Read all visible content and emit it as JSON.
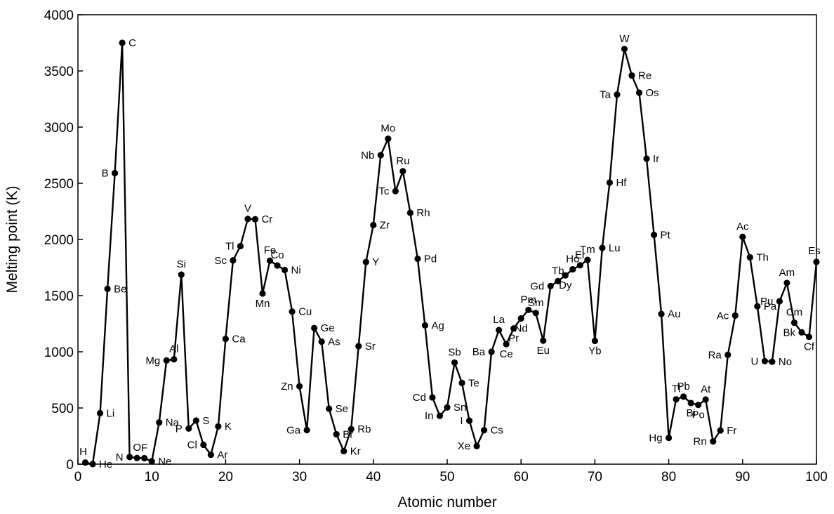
{
  "chart_data": {
    "type": "line",
    "title": "",
    "xlabel": "Atomic number",
    "ylabel": "Melting point (K)",
    "xlim": [
      0,
      100
    ],
    "ylim": [
      0,
      4000
    ],
    "xticks": [
      0,
      10,
      20,
      30,
      40,
      50,
      60,
      70,
      80,
      90,
      100
    ],
    "yticks": [
      0,
      500,
      1000,
      1500,
      2000,
      2500,
      3000,
      3500,
      4000
    ],
    "grid": false,
    "legend": "none",
    "line_color": "#000000",
    "marker_color": "#000000",
    "points": [
      {
        "x": 1,
        "y": 14,
        "label": "H",
        "lp": "tl"
      },
      {
        "x": 2,
        "y": 1,
        "label": "He",
        "lp": "r"
      },
      {
        "x": 3,
        "y": 454,
        "label": "Li",
        "lp": "r"
      },
      {
        "x": 4,
        "y": 1560,
        "label": "Be",
        "lp": "r"
      },
      {
        "x": 5,
        "y": 2590,
        "label": "B",
        "lp": "l"
      },
      {
        "x": 6,
        "y": 3750,
        "label": "C",
        "lp": "r"
      },
      {
        "x": 7,
        "y": 63,
        "label": "N",
        "lp": "l"
      },
      {
        "x": 8,
        "y": 55,
        "label": "O",
        "lp": "t"
      },
      {
        "x": 9,
        "y": 53,
        "label": "F",
        "lp": "t"
      },
      {
        "x": 10,
        "y": 25,
        "label": "Ne",
        "lp": "r"
      },
      {
        "x": 11,
        "y": 371,
        "label": "Na",
        "lp": "r"
      },
      {
        "x": 12,
        "y": 923,
        "label": "Mg",
        "lp": "l"
      },
      {
        "x": 13,
        "y": 933,
        "label": "Al",
        "lp": "t"
      },
      {
        "x": 14,
        "y": 1687,
        "label": "Si",
        "lp": "t"
      },
      {
        "x": 15,
        "y": 317,
        "label": "P",
        "lp": "l"
      },
      {
        "x": 16,
        "y": 388,
        "label": "S",
        "lp": "r"
      },
      {
        "x": 17,
        "y": 172,
        "label": "Cl",
        "lp": "l"
      },
      {
        "x": 18,
        "y": 84,
        "label": "Ar",
        "lp": "r"
      },
      {
        "x": 19,
        "y": 336,
        "label": "K",
        "lp": "r"
      },
      {
        "x": 20,
        "y": 1115,
        "label": "Ca",
        "lp": "r"
      },
      {
        "x": 21,
        "y": 1814,
        "label": "Sc",
        "lp": "l"
      },
      {
        "x": 22,
        "y": 1941,
        "label": "Tl",
        "lp": "l"
      },
      {
        "x": 23,
        "y": 2183,
        "label": "V",
        "lp": "t"
      },
      {
        "x": 24,
        "y": 2180,
        "label": "Cr",
        "lp": "r"
      },
      {
        "x": 25,
        "y": 1519,
        "label": "Mn",
        "lp": "b"
      },
      {
        "x": 26,
        "y": 1811,
        "label": "Fe",
        "lp": "t"
      },
      {
        "x": 27,
        "y": 1768,
        "label": "Co",
        "lp": "t"
      },
      {
        "x": 28,
        "y": 1728,
        "label": "Ni",
        "lp": "r"
      },
      {
        "x": 29,
        "y": 1358,
        "label": "Cu",
        "lp": "r"
      },
      {
        "x": 30,
        "y": 693,
        "label": "Zn",
        "lp": "l"
      },
      {
        "x": 31,
        "y": 303,
        "label": "Ga",
        "lp": "l"
      },
      {
        "x": 32,
        "y": 1211,
        "label": "Ge",
        "lp": "r"
      },
      {
        "x": 33,
        "y": 1090,
        "label": "As",
        "lp": "r"
      },
      {
        "x": 34,
        "y": 494,
        "label": "Se",
        "lp": "r"
      },
      {
        "x": 35,
        "y": 266,
        "label": "Br",
        "lp": "r"
      },
      {
        "x": 36,
        "y": 116,
        "label": "Kr",
        "lp": "r"
      },
      {
        "x": 37,
        "y": 312,
        "label": "Rb",
        "lp": "r"
      },
      {
        "x": 38,
        "y": 1050,
        "label": "Sr",
        "lp": "r"
      },
      {
        "x": 39,
        "y": 1799,
        "label": "Y",
        "lp": "r"
      },
      {
        "x": 40,
        "y": 2128,
        "label": "Zr",
        "lp": "r"
      },
      {
        "x": 41,
        "y": 2750,
        "label": "Nb",
        "lp": "l"
      },
      {
        "x": 42,
        "y": 2896,
        "label": "Mo",
        "lp": "t"
      },
      {
        "x": 43,
        "y": 2430,
        "label": "Tc",
        "lp": "l"
      },
      {
        "x": 44,
        "y": 2607,
        "label": "Ru",
        "lp": "t"
      },
      {
        "x": 45,
        "y": 2237,
        "label": "Rh",
        "lp": "r"
      },
      {
        "x": 46,
        "y": 1828,
        "label": "Pd",
        "lp": "r"
      },
      {
        "x": 47,
        "y": 1235,
        "label": "Ag",
        "lp": "r"
      },
      {
        "x": 48,
        "y": 594,
        "label": "Cd",
        "lp": "l"
      },
      {
        "x": 49,
        "y": 430,
        "label": "In",
        "lp": "l"
      },
      {
        "x": 50,
        "y": 505,
        "label": "Sn",
        "lp": "r"
      },
      {
        "x": 51,
        "y": 904,
        "label": "Sb",
        "lp": "t"
      },
      {
        "x": 52,
        "y": 723,
        "label": "Te",
        "lp": "r"
      },
      {
        "x": 53,
        "y": 387,
        "label": "I",
        "lp": "l"
      },
      {
        "x": 54,
        "y": 161,
        "label": "Xe",
        "lp": "l"
      },
      {
        "x": 55,
        "y": 302,
        "label": "Cs",
        "lp": "r"
      },
      {
        "x": 56,
        "y": 1000,
        "label": "Ba",
        "lp": "l"
      },
      {
        "x": 57,
        "y": 1193,
        "label": "La",
        "lp": "t"
      },
      {
        "x": 58,
        "y": 1068,
        "label": "Ce",
        "lp": "b"
      },
      {
        "x": 59,
        "y": 1208,
        "label": "Pr",
        "lp": "b"
      },
      {
        "x": 60,
        "y": 1297,
        "label": "Nd",
        "lp": "b"
      },
      {
        "x": 61,
        "y": 1373,
        "label": "Pm",
        "lp": "t"
      },
      {
        "x": 62,
        "y": 1345,
        "label": "Sm",
        "lp": "t"
      },
      {
        "x": 63,
        "y": 1099,
        "label": "Eu",
        "lp": "b"
      },
      {
        "x": 64,
        "y": 1585,
        "label": "Gd",
        "lp": "l"
      },
      {
        "x": 65,
        "y": 1629,
        "label": "Tb",
        "lp": "t"
      },
      {
        "x": 66,
        "y": 1680,
        "label": "Dy",
        "lp": "b"
      },
      {
        "x": 67,
        "y": 1734,
        "label": "Ho",
        "lp": "t"
      },
      {
        "x": 68,
        "y": 1770,
        "label": "Er",
        "lp": "t"
      },
      {
        "x": 69,
        "y": 1818,
        "label": "Tm",
        "lp": "t"
      },
      {
        "x": 70,
        "y": 1097,
        "label": "Yb",
        "lp": "b"
      },
      {
        "x": 71,
        "y": 1925,
        "label": "Lu",
        "lp": "r"
      },
      {
        "x": 72,
        "y": 2506,
        "label": "Hf",
        "lp": "r"
      },
      {
        "x": 73,
        "y": 3290,
        "label": "Ta",
        "lp": "l"
      },
      {
        "x": 74,
        "y": 3695,
        "label": "W",
        "lp": "t"
      },
      {
        "x": 75,
        "y": 3459,
        "label": "Re",
        "lp": "r"
      },
      {
        "x": 76,
        "y": 3306,
        "label": "Os",
        "lp": "r"
      },
      {
        "x": 77,
        "y": 2719,
        "label": "Ir",
        "lp": "r"
      },
      {
        "x": 78,
        "y": 2041,
        "label": "Pt",
        "lp": "r"
      },
      {
        "x": 79,
        "y": 1337,
        "label": "Au",
        "lp": "r"
      },
      {
        "x": 80,
        "y": 234,
        "label": "Hg",
        "lp": "l"
      },
      {
        "x": 81,
        "y": 577,
        "label": "Tl",
        "lp": "t"
      },
      {
        "x": 82,
        "y": 601,
        "label": "Pb",
        "lp": "t"
      },
      {
        "x": 83,
        "y": 544,
        "label": "Bi",
        "lp": "b"
      },
      {
        "x": 84,
        "y": 527,
        "label": "Po",
        "lp": "b"
      },
      {
        "x": 85,
        "y": 575,
        "label": "At",
        "lp": "t"
      },
      {
        "x": 86,
        "y": 202,
        "label": "Rn",
        "lp": "l"
      },
      {
        "x": 87,
        "y": 300,
        "label": "Fr",
        "lp": "r"
      },
      {
        "x": 88,
        "y": 973,
        "label": "Ra",
        "lp": "l"
      },
      {
        "x": 89,
        "y": 1323,
        "label": "Ac",
        "lp": "l"
      },
      {
        "x": 90,
        "y": 2023,
        "label": "Ac",
        "lp": "t"
      },
      {
        "x": 91,
        "y": 1841,
        "label": "Th",
        "lp": "r"
      },
      {
        "x": 92,
        "y": 1405,
        "label": "Pa",
        "lp": "r"
      },
      {
        "x": 93,
        "y": 917,
        "label": "U",
        "lp": "l"
      },
      {
        "x": 94,
        "y": 912,
        "label": "No",
        "lp": "r"
      },
      {
        "x": 95,
        "y": 1449,
        "label": "Pu",
        "lp": "l"
      },
      {
        "x": 96,
        "y": 1613,
        "label": "Am",
        "lp": "t"
      },
      {
        "x": 97,
        "y": 1259,
        "label": "Cm",
        "lp": "t"
      },
      {
        "x": 98,
        "y": 1173,
        "label": "Bk",
        "lp": "l"
      },
      {
        "x": 99,
        "y": 1133,
        "label": "Cf",
        "lp": "b"
      },
      {
        "x": 100,
        "y": 1800,
        "label": "Es",
        "lp": "tl"
      }
    ]
  }
}
